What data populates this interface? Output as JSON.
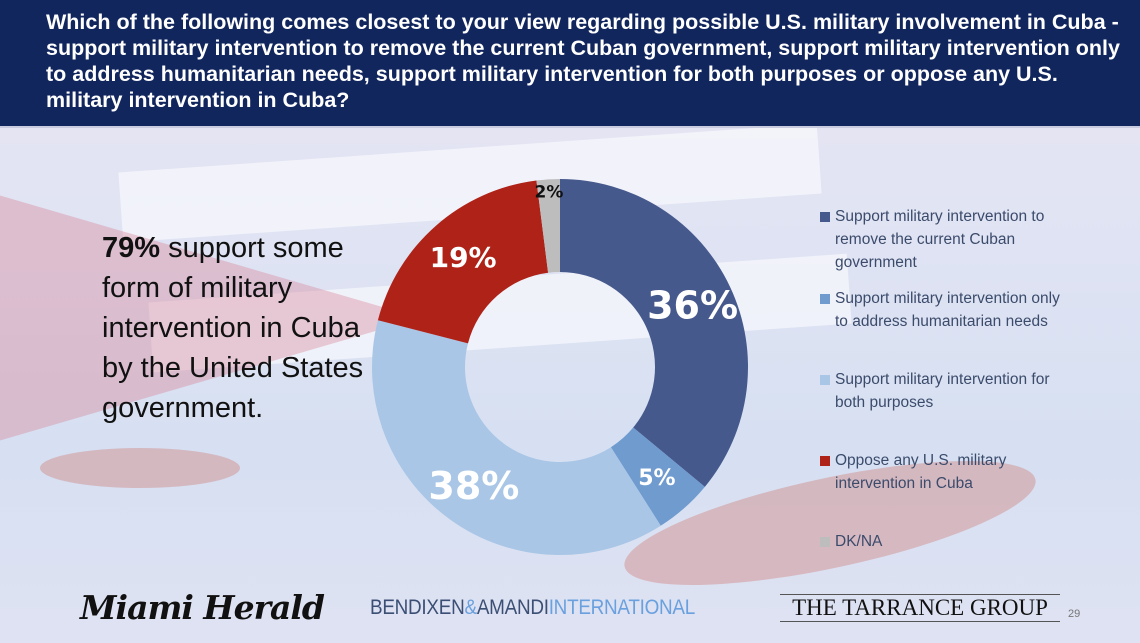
{
  "header": {
    "question": "Which of the following comes closest to your view regarding possible U.S. military involvement in Cuba - support military intervention to remove the current Cuban government, support military intervention only to address humanitarian needs, support military intervention for both purposes or oppose any U.S. military intervention in Cuba?"
  },
  "callout": {
    "highlight": "79%",
    "text": " support some form of military intervention in Cuba by the United States government."
  },
  "chart_data": {
    "type": "pie",
    "donut": true,
    "legend_position": "right",
    "categories": [
      "Support military intervention to remove the current Cuban government",
      "Support military intervention only to address humanitarian needs",
      "Support military intervention for both purposes",
      "Oppose any U.S. military intervention in Cuba",
      "DK/NA"
    ],
    "values": [
      36,
      5,
      38,
      19,
      2
    ],
    "labels": [
      "36%",
      "5%",
      "38%",
      "19%",
      "2%"
    ],
    "colors": [
      "#46598c",
      "#6f9bcf",
      "#a9c6e6",
      "#ae2218",
      "#bdbdbd"
    ],
    "label_colors": [
      "#ffffff",
      "#ffffff",
      "#ffffff",
      "#ffffff",
      "#111111"
    ]
  },
  "logos": {
    "miami_herald": "Miami Herald",
    "ba_1": "BENDIXEN",
    "ba_amp": "&",
    "ba_2": "AMANDI",
    "ba_3": "INTERNATIONAL",
    "tarrance": "THE TARRANCE GROUP"
  },
  "page_number": "29"
}
